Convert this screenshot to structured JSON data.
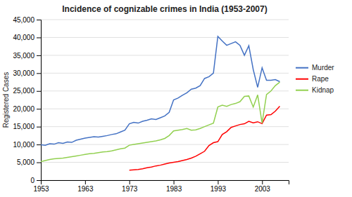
{
  "chart_data": {
    "type": "line",
    "title": "Incidence of cognizable crimes in India (1953-2007)",
    "ylabel": "Registered Cases",
    "x": [
      1953,
      1954,
      1955,
      1956,
      1957,
      1958,
      1959,
      1960,
      1961,
      1962,
      1963,
      1964,
      1965,
      1966,
      1967,
      1968,
      1969,
      1970,
      1971,
      1972,
      1973,
      1974,
      1975,
      1976,
      1977,
      1978,
      1979,
      1980,
      1981,
      1982,
      1983,
      1984,
      1985,
      1986,
      1987,
      1988,
      1989,
      1990,
      1991,
      1992,
      1993,
      1994,
      1995,
      1996,
      1997,
      1998,
      1999,
      2000,
      2001,
      2002,
      2003,
      2004,
      2005,
      2006,
      2007
    ],
    "series": [
      {
        "name": "Murder",
        "color": "#4472c4",
        "values": [
          9900,
          9800,
          10200,
          10100,
          10500,
          10300,
          10700,
          10600,
          11200,
          11500,
          11800,
          12000,
          12200,
          12100,
          12300,
          12500,
          12800,
          13000,
          13500,
          14000,
          15800,
          16200,
          16000,
          16500,
          16800,
          17200,
          17000,
          17500,
          18000,
          19000,
          22500,
          23000,
          23800,
          24500,
          25500,
          25800,
          26500,
          28500,
          29000,
          30000,
          40300,
          39000,
          37800,
          38300,
          38800,
          37800,
          35000,
          37700,
          31000,
          26000,
          31500,
          28000,
          28000,
          28200,
          27600
        ]
      },
      {
        "name": "Rape",
        "color": "#ff0000",
        "values": [
          null,
          null,
          null,
          null,
          null,
          null,
          null,
          null,
          null,
          null,
          null,
          null,
          null,
          null,
          null,
          null,
          null,
          null,
          null,
          null,
          2800,
          2900,
          3000,
          3200,
          3500,
          3700,
          4000,
          4200,
          4500,
          4800,
          5000,
          5200,
          5500,
          5800,
          6200,
          6700,
          7400,
          8100,
          9700,
          10500,
          10800,
          12800,
          13600,
          14800,
          15200,
          15600,
          15800,
          16496,
          16075,
          16373,
          15847,
          18233,
          18359,
          19348,
          20737
        ]
      },
      {
        "name": "Kidnap",
        "color": "#92d050",
        "values": [
          5200,
          5500,
          5800,
          6000,
          6100,
          6200,
          6400,
          6600,
          6800,
          7000,
          7200,
          7400,
          7500,
          7700,
          7900,
          8000,
          8200,
          8500,
          8800,
          9000,
          9800,
          10000,
          10200,
          10400,
          10600,
          10800,
          11000,
          11300,
          11700,
          12500,
          13800,
          14000,
          14200,
          14500,
          14000,
          14100,
          14500,
          15000,
          15500,
          16000,
          20500,
          21000,
          20700,
          21200,
          21500,
          22000,
          23500,
          23600,
          20500,
          23900,
          16000,
          24000,
          25000,
          26500,
          27500
        ]
      }
    ],
    "xlim": [
      1953,
      2009
    ],
    "ylim": [
      0,
      45000
    ],
    "xticks": [
      1953,
      1963,
      1973,
      1983,
      1993,
      2003
    ],
    "yticks": [
      0,
      {
        "value": 5000,
        "label": "5,000"
      },
      {
        "value": 10000,
        "label": "10,000"
      },
      {
        "value": 15000,
        "label": "15,000"
      },
      {
        "value": 20000,
        "label": "20,000"
      },
      {
        "value": 25000,
        "label": "25,000"
      },
      {
        "value": 30000,
        "label": "30,000"
      },
      {
        "value": 35000,
        "label": "35,000"
      },
      {
        "value": 40000,
        "label": "40,000"
      },
      {
        "value": 45000,
        "label": "45,000"
      }
    ],
    "grid": true,
    "legend": "right"
  }
}
